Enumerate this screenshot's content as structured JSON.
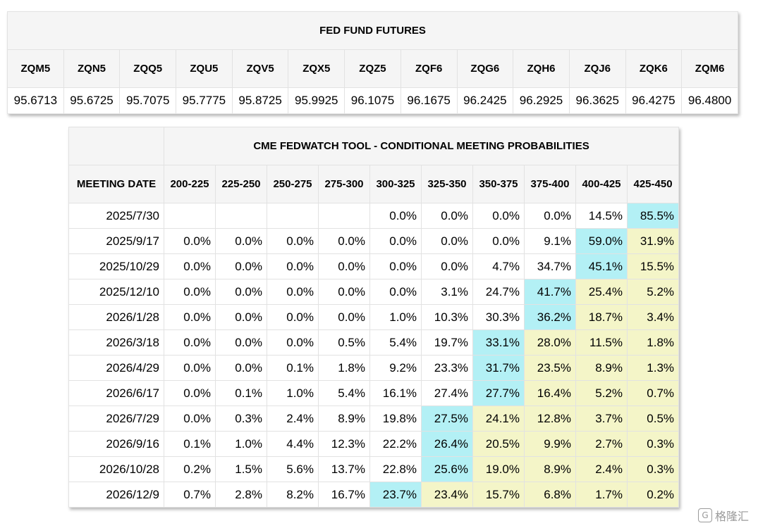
{
  "futures": {
    "title": "FED FUND FUTURES",
    "contracts": [
      {
        "code": "ZQM5",
        "price": "95.6713"
      },
      {
        "code": "ZQN5",
        "price": "95.6725"
      },
      {
        "code": "ZQQ5",
        "price": "95.7075"
      },
      {
        "code": "ZQU5",
        "price": "95.7775"
      },
      {
        "code": "ZQV5",
        "price": "95.8725"
      },
      {
        "code": "ZQX5",
        "price": "95.9925"
      },
      {
        "code": "ZQZ5",
        "price": "96.1075"
      },
      {
        "code": "ZQF6",
        "price": "96.1675"
      },
      {
        "code": "ZQG6",
        "price": "96.2425"
      },
      {
        "code": "ZQH6",
        "price": "96.2925"
      },
      {
        "code": "ZQJ6",
        "price": "96.3625"
      },
      {
        "code": "ZQK6",
        "price": "96.4275"
      },
      {
        "code": "ZQM6",
        "price": "96.4800"
      }
    ]
  },
  "fedwatch": {
    "title": "CME FEDWATCH TOOL - CONDITIONAL MEETING PROBABILITIES",
    "date_header": "MEETING DATE",
    "ranges": [
      "200-225",
      "225-250",
      "250-275",
      "275-300",
      "300-325",
      "325-350",
      "350-375",
      "375-400",
      "400-425",
      "425-450"
    ],
    "highlight_colors": {
      "max": "#b3f0f5",
      "above_max": "#f4f5c8"
    },
    "rows": [
      {
        "date": "2025/7/30",
        "values": [
          "",
          "",
          "",
          "",
          "0.0%",
          "0.0%",
          "0.0%",
          "0.0%",
          "14.5%",
          "85.5%"
        ],
        "max_index": 9
      },
      {
        "date": "2025/9/17",
        "values": [
          "0.0%",
          "0.0%",
          "0.0%",
          "0.0%",
          "0.0%",
          "0.0%",
          "0.0%",
          "9.1%",
          "59.0%",
          "31.9%"
        ],
        "max_index": 8
      },
      {
        "date": "2025/10/29",
        "values": [
          "0.0%",
          "0.0%",
          "0.0%",
          "0.0%",
          "0.0%",
          "0.0%",
          "4.7%",
          "34.7%",
          "45.1%",
          "15.5%"
        ],
        "max_index": 8
      },
      {
        "date": "2025/12/10",
        "values": [
          "0.0%",
          "0.0%",
          "0.0%",
          "0.0%",
          "0.0%",
          "3.1%",
          "24.7%",
          "41.7%",
          "25.4%",
          "5.2%"
        ],
        "max_index": 7
      },
      {
        "date": "2026/1/28",
        "values": [
          "0.0%",
          "0.0%",
          "0.0%",
          "0.0%",
          "1.0%",
          "10.3%",
          "30.3%",
          "36.2%",
          "18.7%",
          "3.4%"
        ],
        "max_index": 7
      },
      {
        "date": "2026/3/18",
        "values": [
          "0.0%",
          "0.0%",
          "0.0%",
          "0.5%",
          "5.4%",
          "19.7%",
          "33.1%",
          "28.0%",
          "11.5%",
          "1.8%"
        ],
        "max_index": 6
      },
      {
        "date": "2026/4/29",
        "values": [
          "0.0%",
          "0.0%",
          "0.1%",
          "1.8%",
          "9.2%",
          "23.3%",
          "31.7%",
          "23.5%",
          "8.9%",
          "1.3%"
        ],
        "max_index": 6
      },
      {
        "date": "2026/6/17",
        "values": [
          "0.0%",
          "0.1%",
          "1.0%",
          "5.4%",
          "16.1%",
          "27.4%",
          "27.7%",
          "16.4%",
          "5.2%",
          "0.7%"
        ],
        "max_index": 6
      },
      {
        "date": "2026/7/29",
        "values": [
          "0.0%",
          "0.3%",
          "2.4%",
          "8.9%",
          "19.8%",
          "27.5%",
          "24.1%",
          "12.8%",
          "3.7%",
          "0.5%"
        ],
        "max_index": 5
      },
      {
        "date": "2026/9/16",
        "values": [
          "0.1%",
          "1.0%",
          "4.4%",
          "12.3%",
          "22.2%",
          "26.4%",
          "20.5%",
          "9.9%",
          "2.7%",
          "0.3%"
        ],
        "max_index": 5
      },
      {
        "date": "2026/10/28",
        "values": [
          "0.2%",
          "1.5%",
          "5.6%",
          "13.7%",
          "22.8%",
          "25.6%",
          "19.0%",
          "8.9%",
          "2.4%",
          "0.3%"
        ],
        "max_index": 5
      },
      {
        "date": "2026/12/9",
        "values": [
          "0.7%",
          "2.8%",
          "8.2%",
          "16.7%",
          "23.7%",
          "23.4%",
          "15.7%",
          "6.8%",
          "1.7%",
          "0.2%"
        ],
        "max_index": 4
      }
    ]
  },
  "watermark": {
    "text": "格隆汇",
    "icon": "brand-logo-icon"
  }
}
